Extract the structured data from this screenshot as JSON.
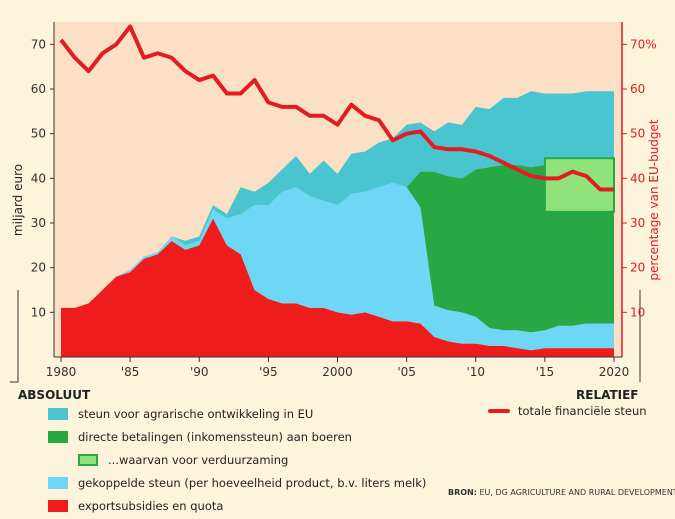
{
  "chart_data": {
    "type": "area",
    "xlabel": "",
    "ylabel_left": "miljard euro",
    "ylabel_right": "percentage van EU-budget",
    "left_axis_label": "ABSOLUUT",
    "right_axis_label": "RELATIEF",
    "xlim": [
      1980,
      2020
    ],
    "ylim_left": [
      0,
      75
    ],
    "ylim_right": [
      0,
      75
    ],
    "x_ticks": [
      "1980",
      "'85",
      "'90",
      "'95",
      "2000",
      "'05",
      "'10",
      "'15",
      "2020"
    ],
    "x_tick_values": [
      1980,
      1985,
      1990,
      1995,
      2000,
      2005,
      2010,
      2015,
      2020
    ],
    "y_ticks_left": [
      "10",
      "20",
      "30",
      "40",
      "50",
      "60",
      "70"
    ],
    "y_ticks_right": [
      "10",
      "20",
      "30",
      "40",
      "50",
      "60",
      "70%"
    ],
    "years": [
      1980,
      1981,
      1982,
      1983,
      1984,
      1985,
      1986,
      1987,
      1988,
      1989,
      1990,
      1991,
      1992,
      1993,
      1994,
      1995,
      1996,
      1997,
      1998,
      1999,
      2000,
      2001,
      2002,
      2003,
      2004,
      2005,
      2006,
      2007,
      2008,
      2009,
      2010,
      2011,
      2012,
      2013,
      2014,
      2015,
      2016,
      2017,
      2018,
      2019,
      2020
    ],
    "series": [
      {
        "name": "exportsubsidies en quota",
        "color": "#ee1c1c",
        "values": [
          11,
          11,
          12,
          15,
          18,
          19,
          22,
          23,
          26,
          24,
          25,
          31,
          25,
          23,
          15,
          13,
          12,
          12,
          11,
          11,
          10,
          9.5,
          10,
          9,
          8,
          8,
          7.5,
          4.5,
          3.5,
          3,
          3,
          2.5,
          2.5,
          2,
          1.5,
          2,
          2,
          2,
          2,
          2,
          2
        ]
      },
      {
        "name": "gekoppelde steun (per hoeveelheid product, b.v. liters melk)",
        "color": "#6dd7f5",
        "values": [
          0,
          0,
          0,
          0,
          0,
          0.5,
          0.5,
          0.5,
          1,
          1,
          1,
          2,
          6,
          9,
          19,
          21,
          25,
          26,
          25,
          24,
          24,
          27,
          27,
          29,
          31,
          30,
          26,
          7,
          7,
          7,
          6,
          4,
          3.5,
          4,
          4,
          4,
          5,
          5,
          5.5,
          5.5,
          5.5
        ]
      },
      {
        "name": "directe betalingen (inkomenssteun) aan boeren",
        "color": "#28a745",
        "values": [
          0,
          0,
          0,
          0,
          0,
          0,
          0,
          0,
          0,
          0,
          0,
          0,
          0,
          0,
          0,
          0,
          0,
          0,
          0,
          0,
          0,
          0,
          0,
          0,
          0,
          0,
          8,
          30,
          30,
          30,
          33,
          36,
          37,
          37,
          37,
          37,
          37,
          37,
          37,
          37,
          37
        ]
      },
      {
        "name": "steun voor agrarische ontwikkeling in EU",
        "color": "#4ac5cf",
        "values": [
          0,
          0,
          0,
          0,
          0,
          0,
          0,
          0,
          0,
          1,
          1,
          1,
          1,
          6,
          3,
          5,
          5,
          7,
          5,
          9,
          7,
          9,
          9,
          10,
          10,
          14,
          11,
          9,
          12,
          12,
          14,
          13,
          15,
          15,
          17,
          16,
          15,
          15,
          15,
          15,
          15
        ]
      }
    ],
    "sub_series": {
      "name": "...waarvan voor verduurzaming",
      "color": "#8fe37a",
      "x_start": 2015,
      "x_end": 2020,
      "top": 44.5,
      "bottom": 32.5
    },
    "line_series": {
      "name": "totale financiële steun",
      "color": "#e31b23",
      "values": [
        71,
        67,
        64,
        68,
        70,
        74,
        67,
        68,
        67,
        64,
        62,
        63,
        59,
        59,
        62,
        57,
        56,
        56,
        54,
        54,
        52,
        56.5,
        54,
        53,
        48.5,
        50,
        50.5,
        47,
        46.5,
        46.5,
        46,
        45,
        43.5,
        42,
        40.5,
        40,
        40,
        41.5,
        40.5,
        37.5,
        37.5
      ]
    },
    "legend": [
      {
        "label": "steun voor agrarische ontwikkeling in EU",
        "color": "#4ac5cf"
      },
      {
        "label": "directe betalingen (inkomenssteun) aan boeren",
        "color": "#28a745"
      },
      {
        "label": "...waarvan voor verduurzaming",
        "color": "#8fe37a",
        "indent": true
      },
      {
        "label": "gekoppelde steun (per hoeveelheid product, b.v. liters melk)",
        "color": "#6dd7f5"
      },
      {
        "label": "exportsubsidies en quota",
        "color": "#ee1c1c"
      }
    ],
    "line_legend": "totale financiële steun",
    "source_prefix": "BRON:",
    "source": "EU, DG AGRICULTURE AND RURAL DEVELOPMENT"
  }
}
